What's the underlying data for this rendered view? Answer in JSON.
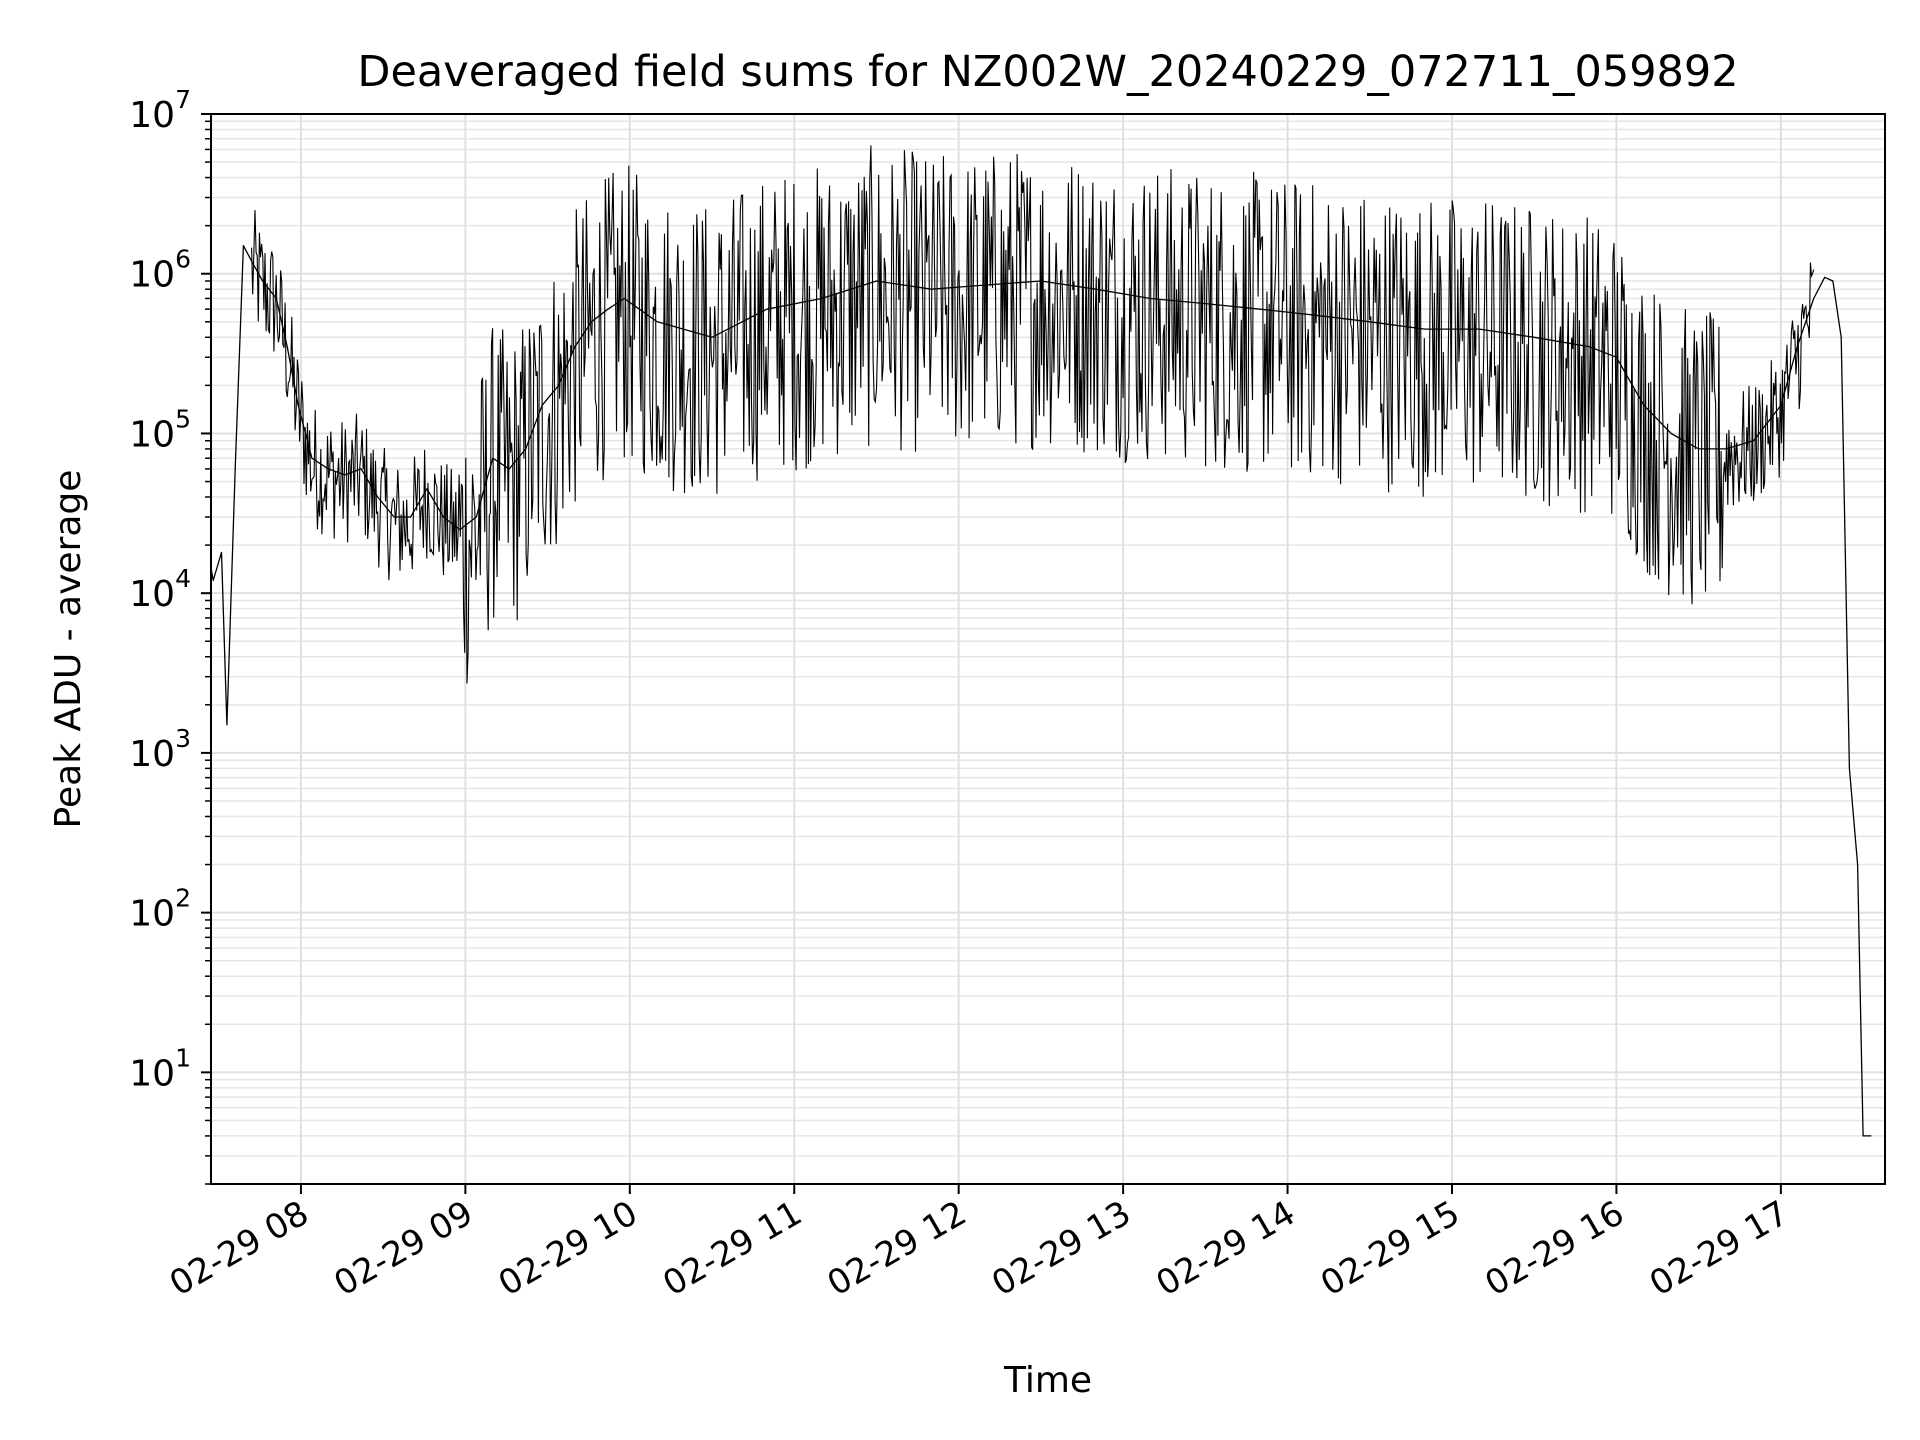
{
  "chart_data": {
    "type": "line",
    "title": "Deaveraged field sums for NZ002W_20240229_072711_059892",
    "xlabel": "Time",
    "ylabel": "Peak ADU - average",
    "yscale": "log",
    "ylim": [
      2,
      10000000
    ],
    "xlim": [
      "2024-02-29 07:27:11",
      "2024-02-29 17:38:00"
    ],
    "grid": true,
    "legend": "none",
    "line_color": "#000000",
    "x_ticks": [
      {
        "x": "2024-02-29 08:00",
        "label": "02-29 08"
      },
      {
        "x": "2024-02-29 09:00",
        "label": "02-29 09"
      },
      {
        "x": "2024-02-29 10:00",
        "label": "02-29 10"
      },
      {
        "x": "2024-02-29 11:00",
        "label": "02-29 11"
      },
      {
        "x": "2024-02-29 12:00",
        "label": "02-29 12"
      },
      {
        "x": "2024-02-29 13:00",
        "label": "02-29 13"
      },
      {
        "x": "2024-02-29 14:00",
        "label": "02-29 14"
      },
      {
        "x": "2024-02-29 15:00",
        "label": "02-29 15"
      },
      {
        "x": "2024-02-29 16:00",
        "label": "02-29 16"
      },
      {
        "x": "2024-02-29 17:00",
        "label": "02-29 17"
      }
    ],
    "y_ticks": [
      {
        "value": 10,
        "base": "10",
        "exp": "1"
      },
      {
        "value": 100,
        "base": "10",
        "exp": "2"
      },
      {
        "value": 1000,
        "base": "10",
        "exp": "3"
      },
      {
        "value": 10000,
        "base": "10",
        "exp": "4"
      },
      {
        "value": 100000,
        "base": "10",
        "exp": "5"
      },
      {
        "value": 1000000,
        "base": "10",
        "exp": "6"
      },
      {
        "value": 10000000,
        "base": "10",
        "exp": "7"
      }
    ],
    "series": [
      {
        "x": [
          "2024-02-29 07:27",
          "2024-02-29 07:28",
          "2024-02-29 07:31",
          "2024-02-29 07:33",
          "2024-02-29 07:36",
          "2024-02-29 07:39",
          "2024-02-29 07:42",
          "2024-02-29 07:46",
          "2024-02-29 07:51",
          "2024-02-29 07:55",
          "2024-02-29 07:59",
          "2024-02-29 08:04",
          "2024-02-29 08:10",
          "2024-02-29 08:16",
          "2024-02-29 08:22",
          "2024-02-29 08:28",
          "2024-02-29 08:34",
          "2024-02-29 08:40",
          "2024-02-29 08:46",
          "2024-02-29 08:52",
          "2024-02-29 08:58",
          "2024-02-29 09:04",
          "2024-02-29 09:10",
          "2024-02-29 09:16",
          "2024-02-29 09:22",
          "2024-02-29 09:28",
          "2024-02-29 09:34",
          "2024-02-29 09:40",
          "2024-02-29 09:46",
          "2024-02-29 09:52",
          "2024-02-29 09:58",
          "2024-02-29 10:10",
          "2024-02-29 10:30",
          "2024-02-29 10:50",
          "2024-02-29 11:10",
          "2024-02-29 11:30",
          "2024-02-29 11:50",
          "2024-02-29 12:10",
          "2024-02-29 12:30",
          "2024-02-29 12:50",
          "2024-02-29 13:10",
          "2024-02-29 13:30",
          "2024-02-29 13:50",
          "2024-02-29 14:10",
          "2024-02-29 14:30",
          "2024-02-29 14:50",
          "2024-02-29 15:10",
          "2024-02-29 15:30",
          "2024-02-29 15:50",
          "2024-02-29 16:00",
          "2024-02-29 16:10",
          "2024-02-29 16:20",
          "2024-02-29 16:30",
          "2024-02-29 16:40",
          "2024-02-29 16:50",
          "2024-02-29 17:00",
          "2024-02-29 17:06",
          "2024-02-29 17:12",
          "2024-02-29 17:16",
          "2024-02-29 17:19",
          "2024-02-29 17:22",
          "2024-02-29 17:25",
          "2024-02-29 17:28",
          "2024-02-29 17:30",
          "2024-02-29 17:33"
        ],
        "values": [
          15000,
          12000,
          18000,
          1500,
          60000,
          1500000,
          1200000,
          900000,
          700000,
          350000,
          150000,
          70000,
          60000,
          55000,
          60000,
          40000,
          30000,
          30000,
          45000,
          30000,
          25000,
          30000,
          70000,
          60000,
          80000,
          150000,
          200000,
          350000,
          500000,
          600000,
          700000,
          500000,
          400000,
          600000,
          700000,
          900000,
          800000,
          850000,
          900000,
          800000,
          700000,
          650000,
          600000,
          550000,
          500000,
          450000,
          450000,
          400000,
          350000,
          300000,
          150000,
          100000,
          80000,
          80000,
          90000,
          150000,
          350000,
          700000,
          950000,
          900000,
          400000,
          800,
          200,
          4,
          4
        ]
      }
    ]
  }
}
